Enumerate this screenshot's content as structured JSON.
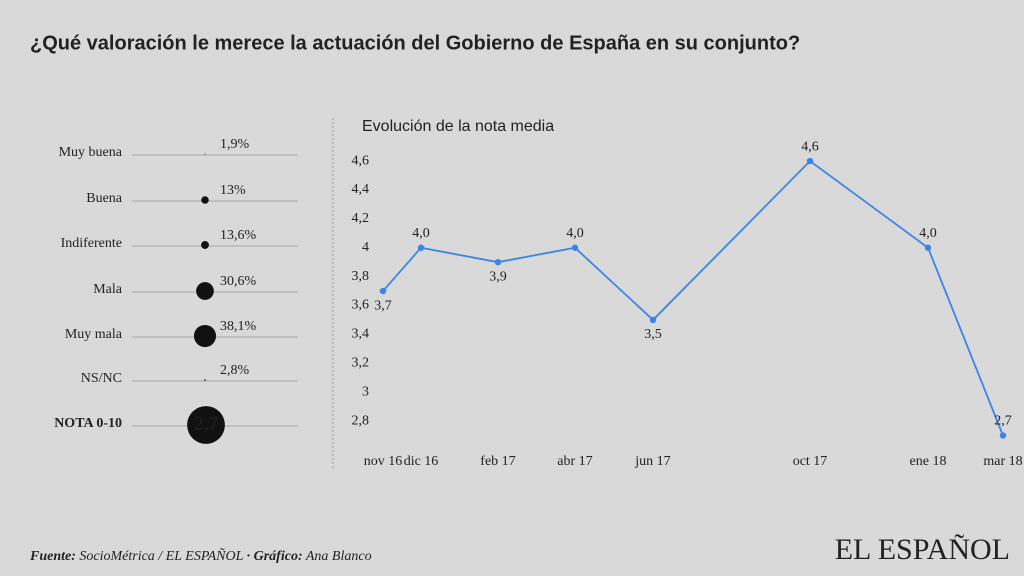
{
  "title": "¿Qué valoración le merece la actuación del Gobierno de España en su conjunto?",
  "chart_data": [
    {
      "type": "dot",
      "categories": [
        "Muy buena",
        "Buena",
        "Indiferente",
        "Mala",
        "Muy mala",
        "NS/NC"
      ],
      "values": [
        1.9,
        13,
        13.6,
        30.6,
        38.1,
        2.8
      ],
      "value_labels": [
        "1,9%",
        "13%",
        "13,6%",
        "30,6%",
        "38,1%",
        "2,8%"
      ],
      "summary_label": "NOTA 0-10",
      "summary_value": 2.7,
      "summary_value_label": "2,7",
      "color": "#111111"
    },
    {
      "type": "line",
      "title": "Evolución de la nota media",
      "categories": [
        "nov 16",
        "dic 16",
        "feb 17",
        "abr 17",
        "jun 17",
        "oct 17",
        "ene 18",
        "mar 18"
      ],
      "values": [
        3.7,
        4.0,
        3.9,
        4.0,
        3.5,
        4.6,
        4.0,
        2.7
      ],
      "value_labels": [
        "3,7",
        "4,0",
        "3,9",
        "4,0",
        "3,5",
        "4,6",
        "4,0",
        "2,7"
      ],
      "color": "#3a86e8",
      "ylim": [
        2.7,
        4.7
      ],
      "yticks": [
        {
          "value": 2.8,
          "label": "2,8"
        },
        3,
        {
          "value": 3.2,
          "label": "3,2"
        },
        {
          "value": 3.4,
          "label": "3,4"
        },
        {
          "value": 3.6,
          "label": "3,6"
        },
        {
          "value": 3.8,
          "label": "3,8"
        },
        4,
        {
          "value": 4.2,
          "label": "4,2"
        },
        {
          "value": 4.4,
          "label": "4,4"
        },
        {
          "value": 4.6,
          "label": "4,6"
        }
      ]
    }
  ],
  "footer": {
    "source_label": "Fuente:",
    "source": "SocioMétrica / EL ESPAÑOL",
    "credit_label": "· Gráfico:",
    "credit": "Ana Blanco"
  },
  "brand": "EL ESPAÑOL"
}
